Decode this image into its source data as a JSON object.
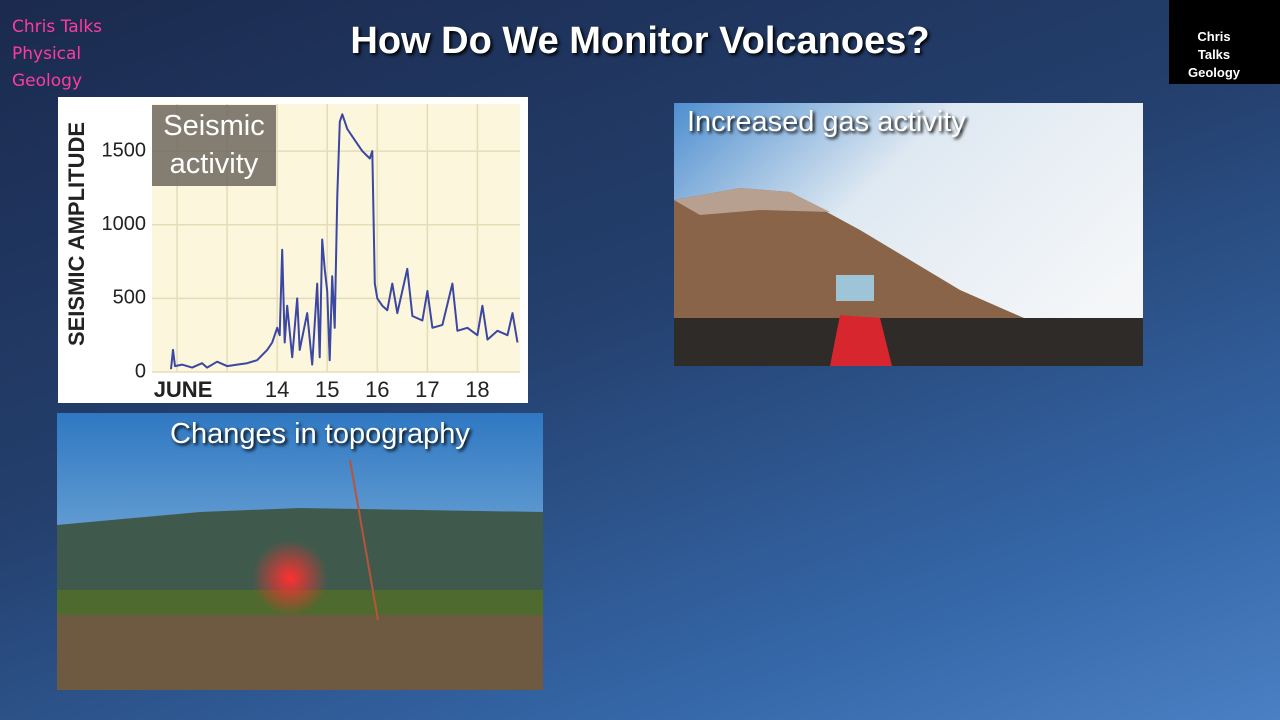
{
  "slide": {
    "brand": "Chris Talks Physical Geology",
    "title": "How Do We Monitor Volcanoes?",
    "logo": "Chris Talks Geology",
    "photo_gas_caption": "Increased gas activity",
    "photo_topography_caption": "Changes in topography"
  },
  "chart_data": {
    "type": "line",
    "annotation": "Seismic activity",
    "y_label": "SEISMIC AMPLITUDE",
    "color": "#3b47a3",
    "grid": true,
    "xlim": [
      11.5,
      18.85
    ],
    "ylim": [
      0,
      1820
    ],
    "xticks": [
      {
        "value": 12,
        "label": "JUNE"
      },
      {
        "value": 13,
        "label": null
      },
      14,
      15,
      16,
      17,
      18
    ],
    "yticks": [
      0,
      500,
      1000,
      1500
    ],
    "x": [
      11.88,
      11.92,
      11.96,
      12.1,
      12.3,
      12.5,
      12.6,
      12.8,
      13.0,
      13.2,
      13.4,
      13.6,
      13.8,
      13.9,
      14.0,
      14.05,
      14.1,
      14.15,
      14.2,
      14.3,
      14.4,
      14.45,
      14.6,
      14.7,
      14.8,
      14.85,
      14.9,
      14.95,
      15.0,
      15.05,
      15.1,
      15.15,
      15.2,
      15.25,
      15.3,
      15.4,
      15.5,
      15.6,
      15.7,
      15.85,
      15.9,
      15.95,
      16.0,
      16.1,
      16.2,
      16.3,
      16.4,
      16.6,
      16.7,
      16.9,
      17.0,
      17.1,
      17.3,
      17.5,
      17.6,
      17.8,
      18.0,
      18.1,
      18.2,
      18.4,
      18.6,
      18.7,
      18.8
    ],
    "values": [
      20,
      150,
      40,
      50,
      30,
      60,
      30,
      70,
      40,
      50,
      60,
      80,
      150,
      200,
      300,
      250,
      830,
      200,
      450,
      100,
      500,
      150,
      400,
      50,
      600,
      100,
      900,
      700,
      550,
      80,
      650,
      300,
      1200,
      1700,
      1750,
      1650,
      1600,
      1550,
      1500,
      1450,
      1500,
      600,
      500,
      450,
      420,
      600,
      400,
      700,
      380,
      350,
      550,
      300,
      320,
      600,
      280,
      300,
      250,
      450,
      220,
      280,
      250,
      400,
      200
    ]
  }
}
